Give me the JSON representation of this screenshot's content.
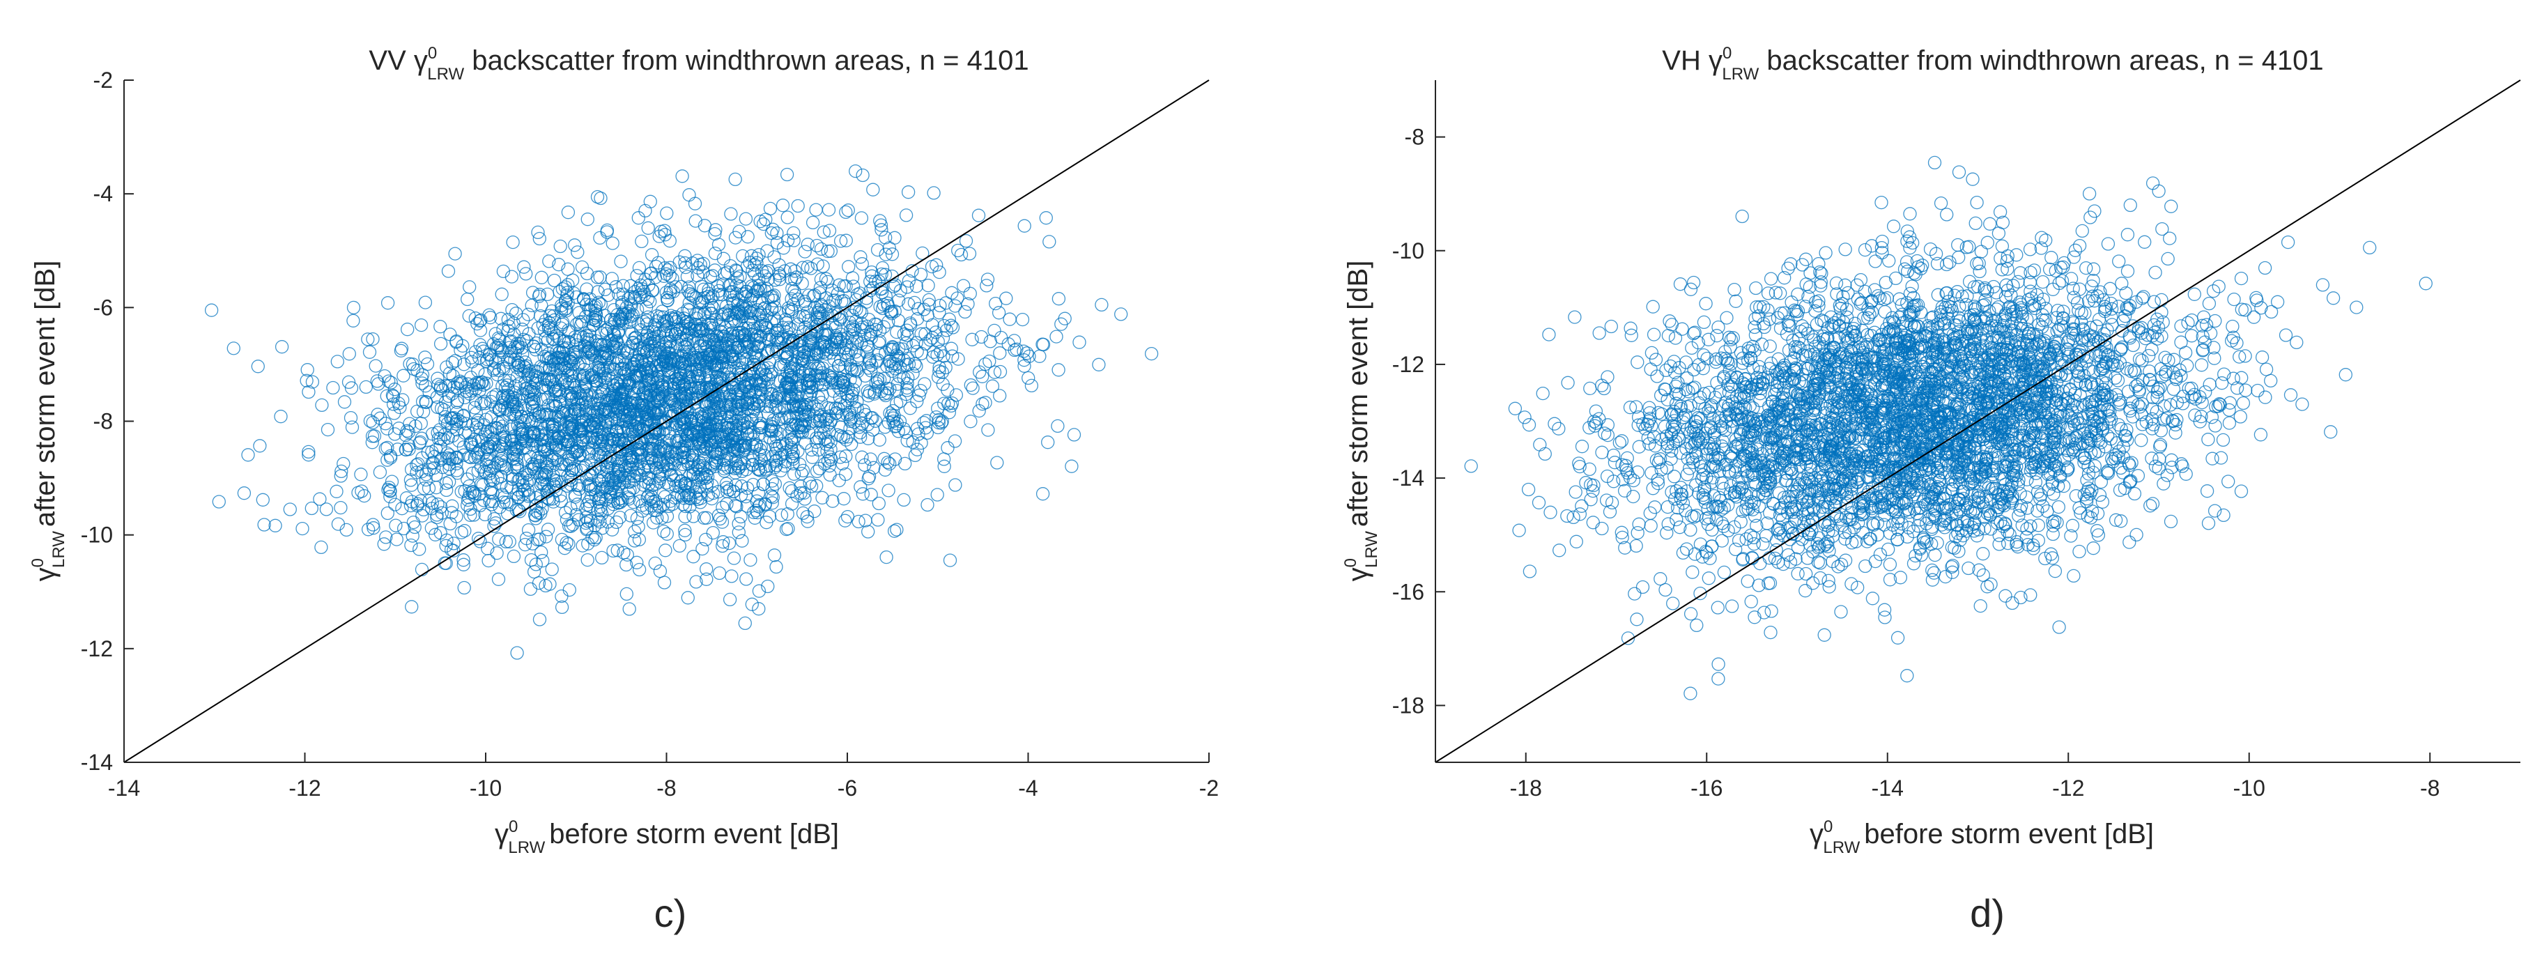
{
  "chart_data": [
    {
      "type": "scatter",
      "polarization": "VV",
      "title_prefix": "VV",
      "title_symbol": "γ",
      "title_superscript": "0",
      "title_subscript": "LRW",
      "title_suffix": " backscatter from windthrown areas, n = 4101",
      "n": 4101,
      "xlabel_symbol": "γ",
      "xlabel_superscript": "0",
      "xlabel_subscript": "LRW",
      "xlabel_text": "before storm event [dB]",
      "ylabel_symbol": "γ",
      "ylabel_superscript": "0",
      "ylabel_subscript": "LRW",
      "ylabel_text": "after storm event [dB]",
      "xlim": [
        -14,
        -2
      ],
      "ylim": [
        -14,
        -2
      ],
      "xticks": [
        -14,
        -12,
        -10,
        -8,
        -6,
        -4,
        -2
      ],
      "yticks": [
        -14,
        -12,
        -10,
        -8,
        -6,
        -4,
        -2
      ],
      "identity_line": [
        [
          -14,
          -14
        ],
        [
          -2,
          -2
        ]
      ],
      "cluster_center": [
        -8.0,
        -7.6
      ],
      "spread": [
        1.55,
        1.25
      ],
      "correlation": 0.3,
      "marker": "open-circle",
      "color": "#0072BD",
      "panel_label": "c)"
    },
    {
      "type": "scatter",
      "polarization": "VH",
      "title_prefix": "VH",
      "title_symbol": "γ",
      "title_superscript": "0",
      "title_subscript": "LRW",
      "title_suffix": " backscatter from windthrown areas, n = 4101",
      "n": 4101,
      "xlabel_symbol": "γ",
      "xlabel_superscript": "0",
      "xlabel_subscript": "LRW",
      "xlabel_text": "before storm event [dB]",
      "ylabel_symbol": "γ",
      "ylabel_superscript": "0",
      "ylabel_subscript": "LRW",
      "ylabel_text": "after storm event [dB]",
      "xlim": [
        -19,
        -7
      ],
      "ylim": [
        -19,
        -7
      ],
      "xticks": [
        -18,
        -16,
        -14,
        -12,
        -10,
        -8
      ],
      "yticks": [
        -18,
        -16,
        -14,
        -12,
        -10,
        -8
      ],
      "identity_line": [
        [
          -19,
          -19
        ],
        [
          -7,
          -7
        ]
      ],
      "cluster_center": [
        -13.7,
        -12.9
      ],
      "spread": [
        1.5,
        1.25
      ],
      "correlation": 0.25,
      "marker": "open-circle",
      "color": "#0072BD",
      "panel_label": "d)"
    }
  ]
}
